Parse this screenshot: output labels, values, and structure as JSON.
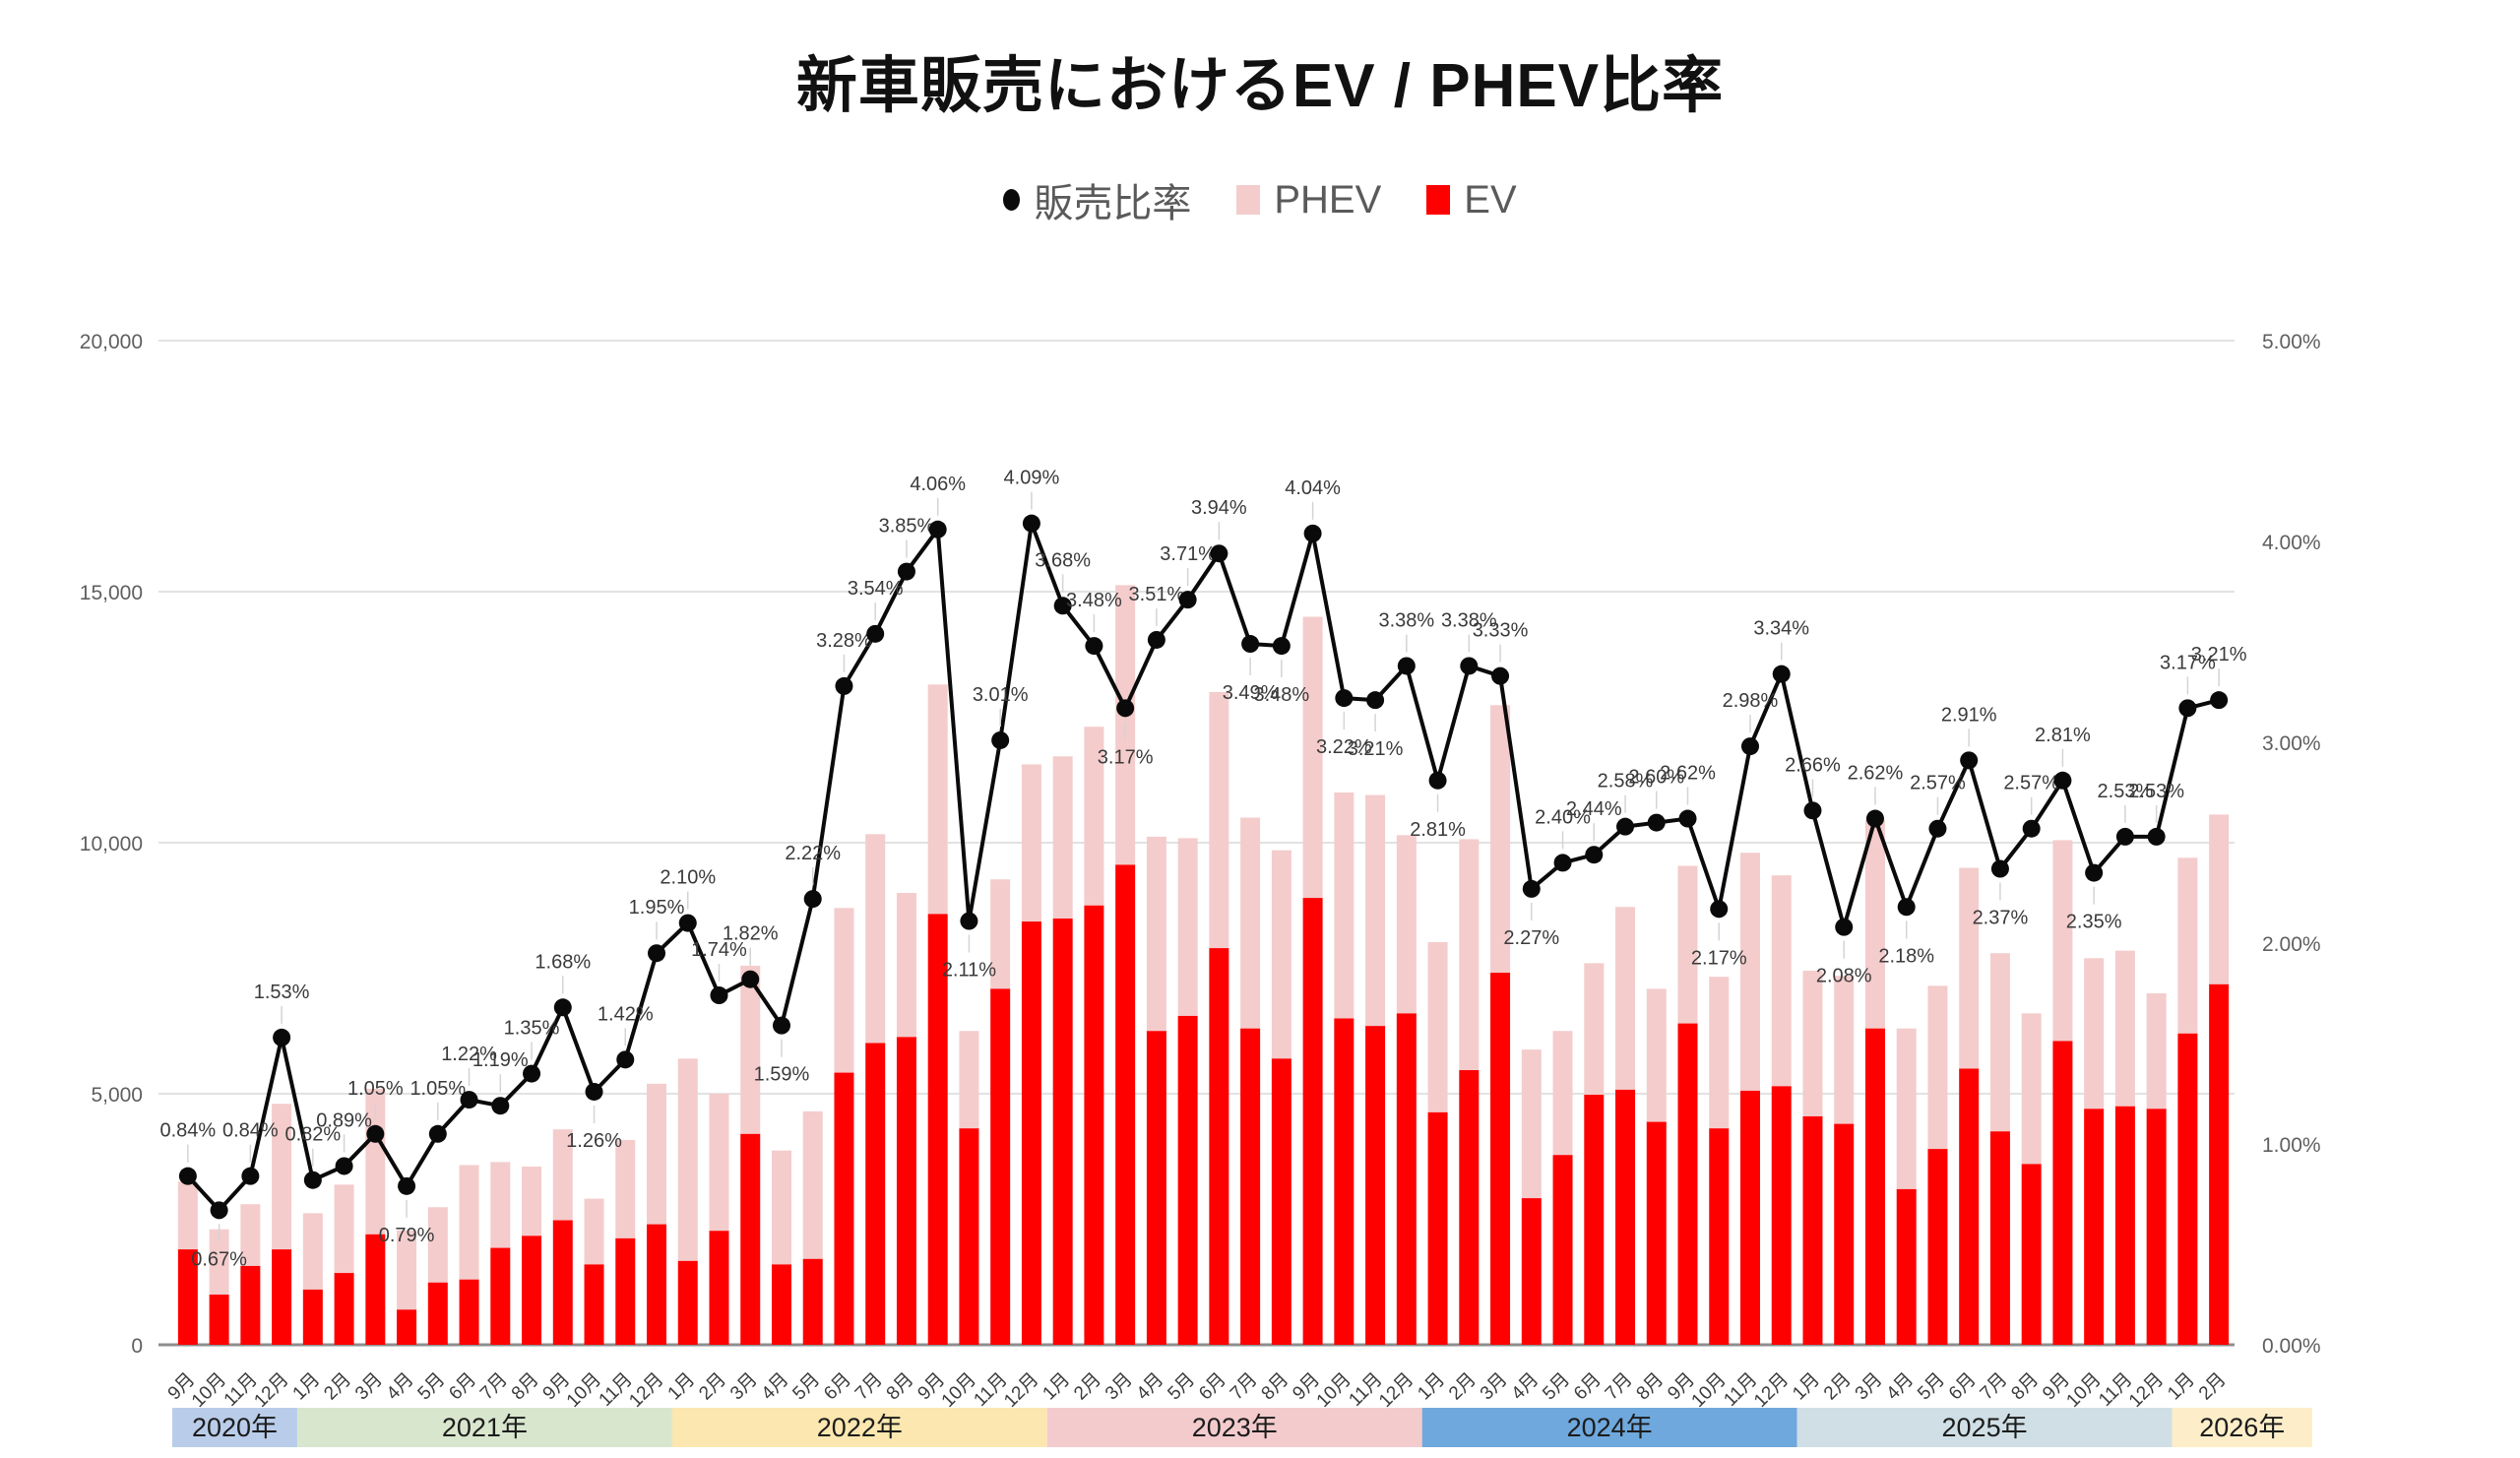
{
  "title": "新車販売におけるEV / PHEV比率",
  "legend": {
    "ratio": "販売比率",
    "phev": "PHEV",
    "ev": "EV"
  },
  "chart_data": {
    "type": "bar",
    "overlay": "line",
    "title": "新車販売におけるEV / PHEV比率",
    "grid": true,
    "legend_position": "top",
    "months": [
      "9月",
      "10月",
      "11月",
      "12月",
      "1月",
      "2月",
      "3月",
      "4月",
      "5月",
      "6月",
      "7月",
      "8月",
      "9月",
      "10月",
      "11月",
      "12月",
      "1月",
      "2月",
      "3月",
      "4月",
      "5月",
      "6月",
      "7月",
      "8月",
      "9月",
      "10月",
      "11月",
      "12月",
      "1月",
      "2月",
      "3月",
      "4月",
      "5月",
      "6月",
      "7月",
      "8月",
      "9月",
      "10月",
      "11月",
      "12月",
      "1月",
      "2月",
      "3月",
      "4月",
      "5月",
      "6月",
      "7月",
      "8月",
      "9月",
      "10月",
      "11月",
      "12月",
      "1月",
      "2月",
      "3月",
      "4月",
      "5月",
      "6月",
      "7月",
      "8月",
      "9月",
      "10月",
      "11月",
      "12月",
      "1月",
      "2月"
    ],
    "series": [
      {
        "name": "EV",
        "type": "bar",
        "color": "#ff0000",
        "axis": "left",
        "values": [
          1900,
          1000,
          1570,
          1900,
          1100,
          1430,
          2200,
          700,
          1240,
          1300,
          1930,
          2170,
          2480,
          1600,
          2120,
          2400,
          1670,
          2270,
          4200,
          1600,
          1710,
          5420,
          6010,
          6130,
          8580,
          4310,
          7090,
          8430,
          8490,
          8750,
          9560,
          6250,
          6550,
          7900,
          6300,
          5700,
          8900,
          6500,
          6350,
          6600,
          4630,
          5470,
          7410,
          2920,
          3780,
          4980,
          5080,
          4440,
          6400,
          4310,
          5060,
          5150,
          4550,
          4400,
          6300,
          3100,
          3900,
          5500,
          4250,
          3600,
          6050,
          4700,
          4750,
          4700,
          6200,
          7180
        ]
      },
      {
        "name": "PHEV",
        "type": "bar",
        "color": "#f4cccc",
        "axis": "left",
        "values": [
          1350,
          1300,
          1230,
          2900,
          1520,
          1760,
          2900,
          1580,
          1500,
          2280,
          1710,
          1380,
          1810,
          1310,
          1960,
          2800,
          4030,
          2730,
          3350,
          2270,
          2940,
          3280,
          4160,
          2870,
          4570,
          1940,
          2180,
          3130,
          3230,
          3560,
          5570,
          3870,
          3540,
          5100,
          4200,
          4150,
          5600,
          4500,
          4600,
          3550,
          3390,
          4600,
          5330,
          2960,
          2470,
          2620,
          3640,
          2650,
          3140,
          3020,
          4740,
          4200,
          2900,
          2950,
          4150,
          3200,
          3250,
          4000,
          3550,
          3000,
          4000,
          3000,
          3100,
          2300,
          3500,
          3380
        ]
      },
      {
        "name": "販売比率",
        "type": "line",
        "color": "#0a0a0a",
        "axis": "right",
        "unit": "%",
        "values": [
          0.84,
          0.67,
          0.84,
          1.53,
          0.82,
          0.89,
          1.05,
          0.79,
          1.05,
          1.22,
          1.19,
          1.35,
          1.68,
          1.26,
          1.42,
          1.95,
          2.1,
          1.74,
          1.82,
          1.59,
          2.22,
          3.28,
          3.54,
          3.85,
          4.06,
          2.11,
          3.01,
          4.09,
          3.68,
          3.48,
          3.17,
          3.51,
          3.71,
          3.94,
          3.49,
          3.48,
          4.04,
          3.22,
          3.21,
          3.38,
          2.81,
          3.38,
          3.33,
          2.27,
          2.4,
          2.44,
          2.58,
          2.6,
          2.62,
          2.17,
          2.98,
          3.34,
          2.66,
          2.08,
          2.62,
          2.18,
          2.57,
          2.91,
          2.37,
          2.57,
          2.81,
          2.35,
          2.53,
          2.53,
          3.17,
          3.21
        ]
      }
    ],
    "label_below": [
      1,
      7,
      13,
      19,
      25,
      30,
      34,
      35,
      37,
      38,
      40,
      43,
      49,
      53,
      55,
      58,
      61
    ],
    "left_axis": {
      "min": 0,
      "max": 20000,
      "ticks": [
        "0",
        "5,000",
        "10,000",
        "15,000",
        "20,000"
      ]
    },
    "right_axis": {
      "min": 0,
      "max": 5,
      "ticks": [
        "0.00%",
        "1.00%",
        "2.00%",
        "3.00%",
        "4.00%",
        "5.00%"
      ]
    },
    "year_bands": [
      {
        "label": "2020年",
        "months": 4,
        "color": "#b9cdea"
      },
      {
        "label": "2021年",
        "months": 12,
        "color": "#d8e6cd"
      },
      {
        "label": "2022年",
        "months": 12,
        "color": "#fbe7af"
      },
      {
        "label": "2023年",
        "months": 12,
        "color": "#f3cbcd"
      },
      {
        "label": "2024年",
        "months": 12,
        "color": "#6fa8dc"
      },
      {
        "label": "2025年",
        "months": 12,
        "color": "#cfdfe5"
      },
      {
        "label": "2026年",
        "months": 2,
        "color": "#fdeec9"
      }
    ]
  }
}
